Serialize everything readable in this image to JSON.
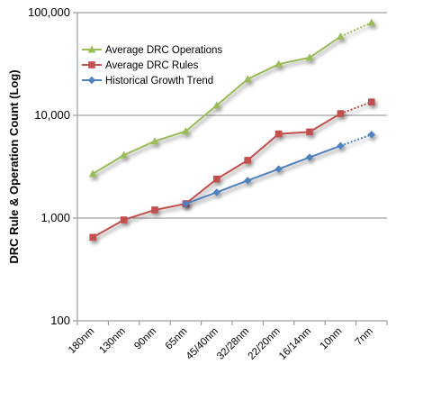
{
  "chart_data": {
    "type": "line",
    "title": "",
    "xlabel": "",
    "ylabel": "DRC Rule  & Operation Count (Log)",
    "yscale": "log",
    "ylim": [
      100,
      100000
    ],
    "yticks": [
      "100",
      "1,000",
      "10,000",
      "100,000"
    ],
    "grid": true,
    "legend_position": "top-left",
    "categories": [
      "180nm",
      "130nm",
      "90nm",
      "65nm",
      "45/40nm",
      "32/28nm",
      "22/20nm",
      "16/14nm",
      "10nm",
      "7nm"
    ],
    "series": [
      {
        "name": "Average DRC Operations",
        "color": "#9BBB59",
        "marker": "triangle",
        "values": [
          2700,
          4100,
          5600,
          7000,
          12500,
          22500,
          31500,
          36500,
          58500,
          80000
        ],
        "projected_from_index": 8
      },
      {
        "name": "Average DRC Rules",
        "color": "#C0504D",
        "marker": "square",
        "values": [
          650,
          960,
          1200,
          1380,
          2400,
          3650,
          6600,
          6900,
          10400,
          13500
        ],
        "projected_from_index": 8
      },
      {
        "name": "Historical Growth Trend",
        "color": "#4F81BD",
        "marker": "diamond",
        "values": [
          null,
          null,
          null,
          1380,
          1780,
          2320,
          3000,
          3900,
          5050,
          6500
        ],
        "projected_from_index": 8
      }
    ]
  }
}
